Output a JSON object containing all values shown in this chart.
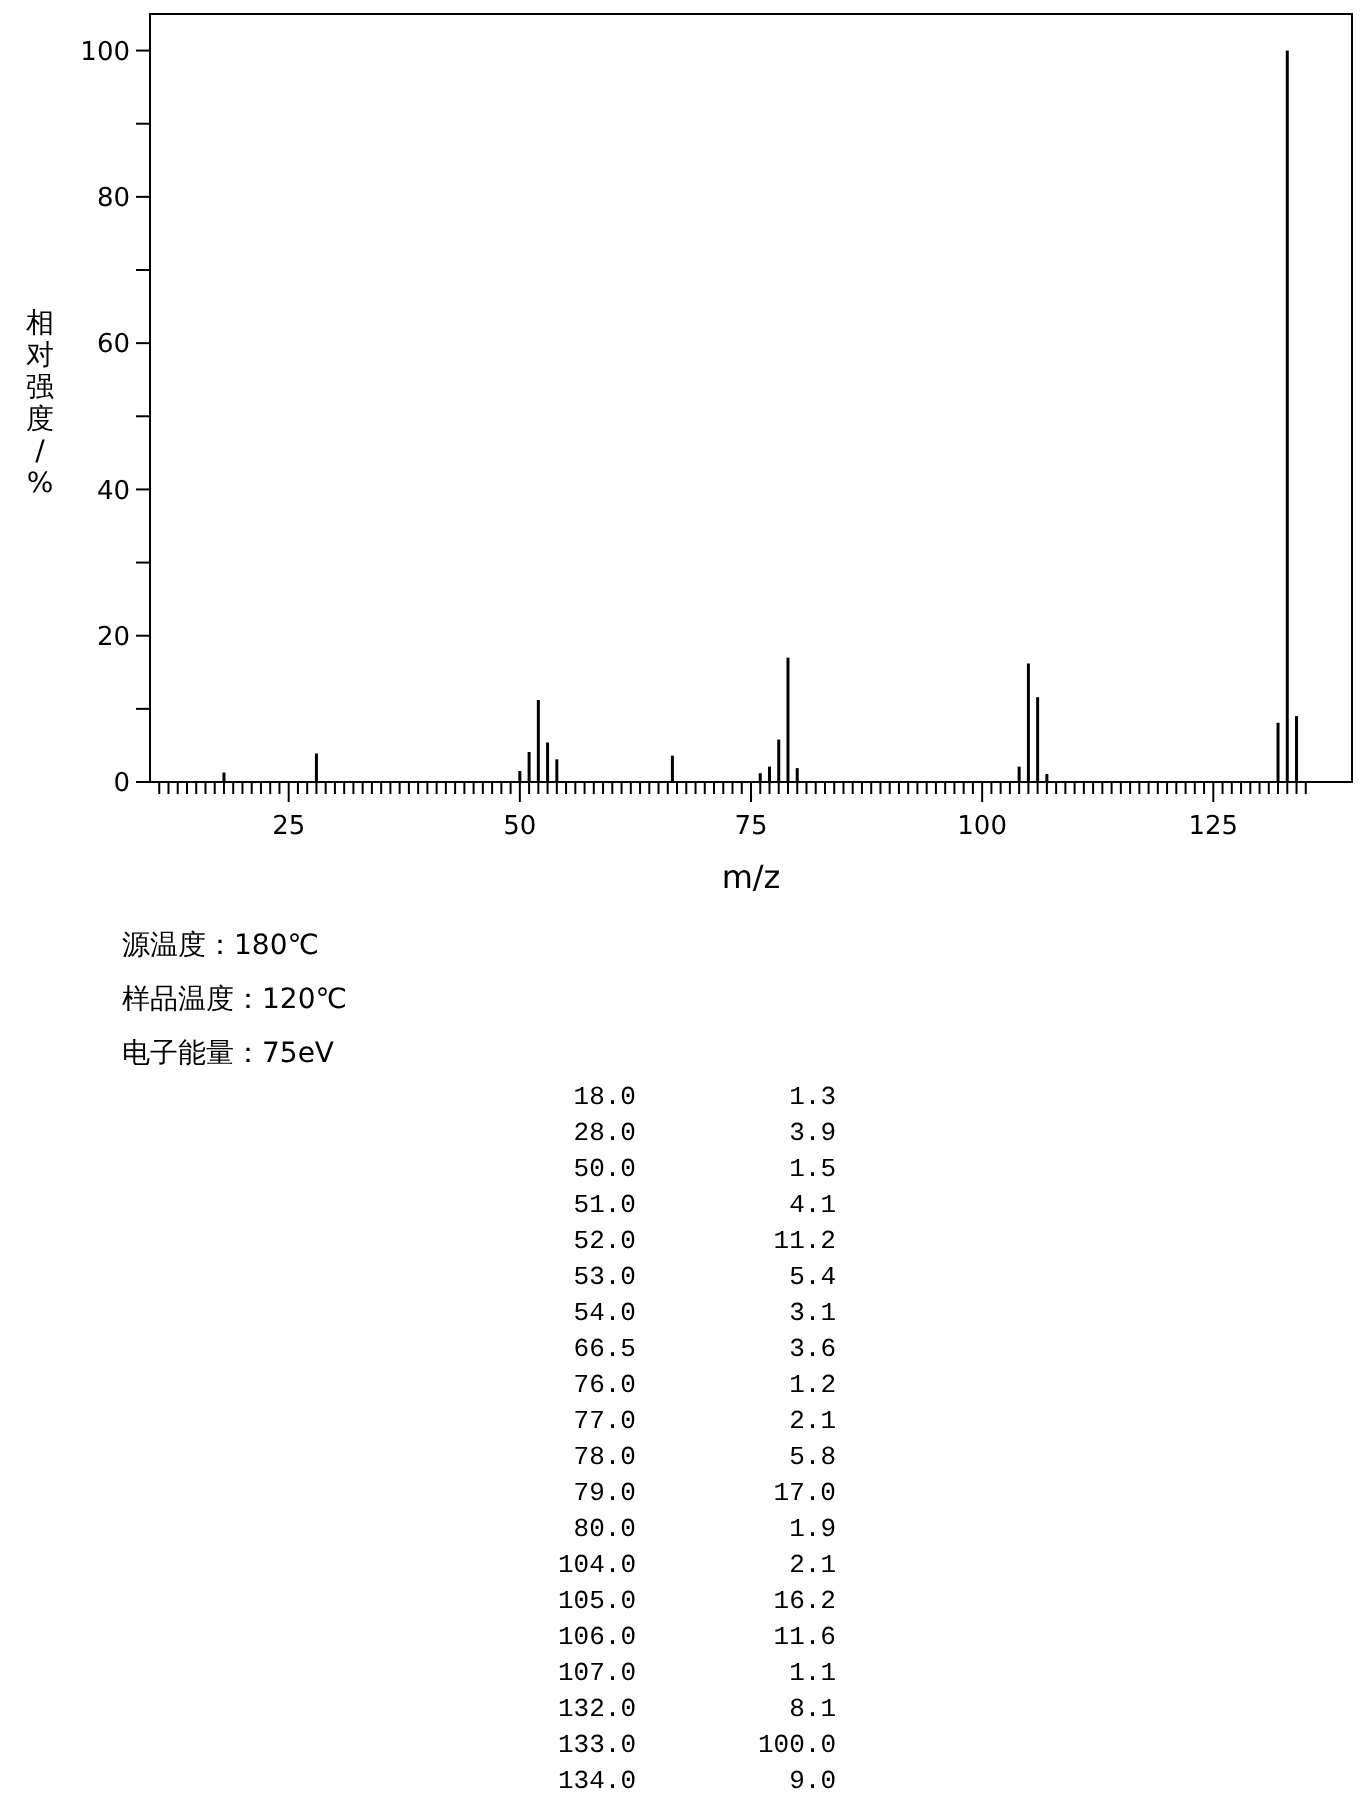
{
  "chart_data": {
    "type": "bar",
    "xlabel": "m/z",
    "ylabel": "相对强度/%",
    "x": [
      18,
      28,
      50,
      51,
      52,
      53,
      54,
      66.5,
      76,
      77,
      78,
      79,
      80,
      104,
      105,
      106,
      107,
      132,
      133,
      134
    ],
    "values": [
      1.3,
      3.9,
      1.5,
      4.1,
      11.2,
      5.4,
      3.1,
      3.6,
      1.2,
      2.1,
      5.8,
      17.0,
      1.9,
      2.1,
      16.2,
      11.6,
      1.1,
      8.1,
      100.0,
      9.0
    ],
    "color": "#000000",
    "grid": false,
    "xlim": [
      10,
      140
    ],
    "ylim": [
      0,
      105
    ],
    "xticks": [
      {
        "value": 11,
        "label": null
      },
      {
        "value": 12,
        "label": null
      },
      {
        "value": 13,
        "label": null
      },
      {
        "value": 14,
        "label": null
      },
      {
        "value": 15,
        "label": null
      },
      {
        "value": 16,
        "label": null
      },
      {
        "value": 17,
        "label": null
      },
      {
        "value": 18,
        "label": null
      },
      {
        "value": 19,
        "label": null
      },
      {
        "value": 20,
        "label": null
      },
      {
        "value": 21,
        "label": null
      },
      {
        "value": 22,
        "label": null
      },
      {
        "value": 23,
        "label": null
      },
      {
        "value": 24,
        "label": null
      },
      25,
      {
        "value": 26,
        "label": null
      },
      {
        "value": 27,
        "label": null
      },
      {
        "value": 28,
        "label": null
      },
      {
        "value": 29,
        "label": null
      },
      {
        "value": 30,
        "label": null
      },
      {
        "value": 31,
        "label": null
      },
      {
        "value": 32,
        "label": null
      },
      {
        "value": 33,
        "label": null
      },
      {
        "value": 34,
        "label": null
      },
      {
        "value": 35,
        "label": null
      },
      {
        "value": 36,
        "label": null
      },
      {
        "value": 37,
        "label": null
      },
      {
        "value": 38,
        "label": null
      },
      {
        "value": 39,
        "label": null
      },
      {
        "value": 40,
        "label": null
      },
      {
        "value": 41,
        "label": null
      },
      {
        "value": 42,
        "label": null
      },
      {
        "value": 43,
        "label": null
      },
      {
        "value": 44,
        "label": null
      },
      {
        "value": 45,
        "label": null
      },
      {
        "value": 46,
        "label": null
      },
      {
        "value": 47,
        "label": null
      },
      {
        "value": 48,
        "label": null
      },
      {
        "value": 49,
        "label": null
      },
      50,
      {
        "value": 51,
        "label": null
      },
      {
        "value": 52,
        "label": null
      },
      {
        "value": 53,
        "label": null
      },
      {
        "value": 54,
        "label": null
      },
      {
        "value": 55,
        "label": null
      },
      {
        "value": 56,
        "label": null
      },
      {
        "value": 57,
        "label": null
      },
      {
        "value": 58,
        "label": null
      },
      {
        "value": 59,
        "label": null
      },
      {
        "value": 60,
        "label": null
      },
      {
        "value": 61,
        "label": null
      },
      {
        "value": 62,
        "label": null
      },
      {
        "value": 63,
        "label": null
      },
      {
        "value": 64,
        "label": null
      },
      {
        "value": 65,
        "label": null
      },
      {
        "value": 66,
        "label": null
      },
      {
        "value": 67,
        "label": null
      },
      {
        "value": 68,
        "label": null
      },
      {
        "value": 69,
        "label": null
      },
      {
        "value": 70,
        "label": null
      },
      {
        "value": 71,
        "label": null
      },
      {
        "value": 72,
        "label": null
      },
      {
        "value": 73,
        "label": null
      },
      {
        "value": 74,
        "label": null
      },
      75,
      {
        "value": 76,
        "label": null
      },
      {
        "value": 77,
        "label": null
      },
      {
        "value": 78,
        "label": null
      },
      {
        "value": 79,
        "label": null
      },
      {
        "value": 80,
        "label": null
      },
      {
        "value": 81,
        "label": null
      },
      {
        "value": 82,
        "label": null
      },
      {
        "value": 83,
        "label": null
      },
      {
        "value": 84,
        "label": null
      },
      {
        "value": 85,
        "label": null
      },
      {
        "value": 86,
        "label": null
      },
      {
        "value": 87,
        "label": null
      },
      {
        "value": 88,
        "label": null
      },
      {
        "value": 89,
        "label": null
      },
      {
        "value": 90,
        "label": null
      },
      {
        "value": 91,
        "label": null
      },
      {
        "value": 92,
        "label": null
      },
      {
        "value": 93,
        "label": null
      },
      {
        "value": 94,
        "label": null
      },
      {
        "value": 95,
        "label": null
      },
      {
        "value": 96,
        "label": null
      },
      {
        "value": 97,
        "label": null
      },
      {
        "value": 98,
        "label": null
      },
      {
        "value": 99,
        "label": null
      },
      100,
      {
        "value": 101,
        "label": null
      },
      {
        "value": 102,
        "label": null
      },
      {
        "value": 103,
        "label": null
      },
      {
        "value": 104,
        "label": null
      },
      {
        "value": 105,
        "label": null
      },
      {
        "value": 106,
        "label": null
      },
      {
        "value": 107,
        "label": null
      },
      {
        "value": 108,
        "label": null
      },
      {
        "value": 109,
        "label": null
      },
      {
        "value": 110,
        "label": null
      },
      {
        "value": 111,
        "label": null
      },
      {
        "value": 112,
        "label": null
      },
      {
        "value": 113,
        "label": null
      },
      {
        "value": 114,
        "label": null
      },
      {
        "value": 115,
        "label": null
      },
      {
        "value": 116,
        "label": null
      },
      {
        "value": 117,
        "label": null
      },
      {
        "value": 118,
        "label": null
      },
      {
        "value": 119,
        "label": null
      },
      {
        "value": 120,
        "label": null
      },
      {
        "value": 121,
        "label": null
      },
      {
        "value": 122,
        "label": null
      },
      {
        "value": 123,
        "label": null
      },
      {
        "value": 124,
        "label": null
      },
      125,
      {
        "value": 126,
        "label": null
      },
      {
        "value": 127,
        "label": null
      },
      {
        "value": 128,
        "label": null
      },
      {
        "value": 129,
        "label": null
      },
      {
        "value": 130,
        "label": null
      },
      {
        "value": 131,
        "label": null
      },
      {
        "value": 132,
        "label": null
      },
      {
        "value": 133,
        "label": null
      },
      {
        "value": 134,
        "label": null
      },
      {
        "value": 135,
        "label": null
      }
    ],
    "yticks": [
      0,
      {
        "value": 10,
        "label": null
      },
      20,
      {
        "value": 30,
        "label": null
      },
      40,
      {
        "value": 50,
        "label": null
      },
      60,
      {
        "value": 70,
        "label": null
      },
      80,
      {
        "value": 90,
        "label": null
      },
      100
    ],
    "annotations": [
      "源温度：180℃",
      "样品温度：120℃",
      "电子能量：75eV",
      "18.0",
      "1.3",
      "28.0",
      "3.9",
      "50.0",
      "1.5",
      "51.0",
      "4.1",
      "52.0",
      "11.2",
      "53.0",
      "5.4",
      "54.0",
      "3.1",
      "66.5",
      "3.6",
      "76.0",
      "1.2",
      "77.0",
      "2.1",
      "78.0",
      "5.8",
      "79.0",
      "17.0",
      "80.0",
      "1.9",
      "104.0",
      "2.1",
      "105.0",
      "16.2",
      "106.0",
      "11.6",
      "107.0",
      "1.1",
      "132.0",
      "8.1",
      "133.0",
      "100.0",
      "134.0",
      "9.0"
    ]
  }
}
